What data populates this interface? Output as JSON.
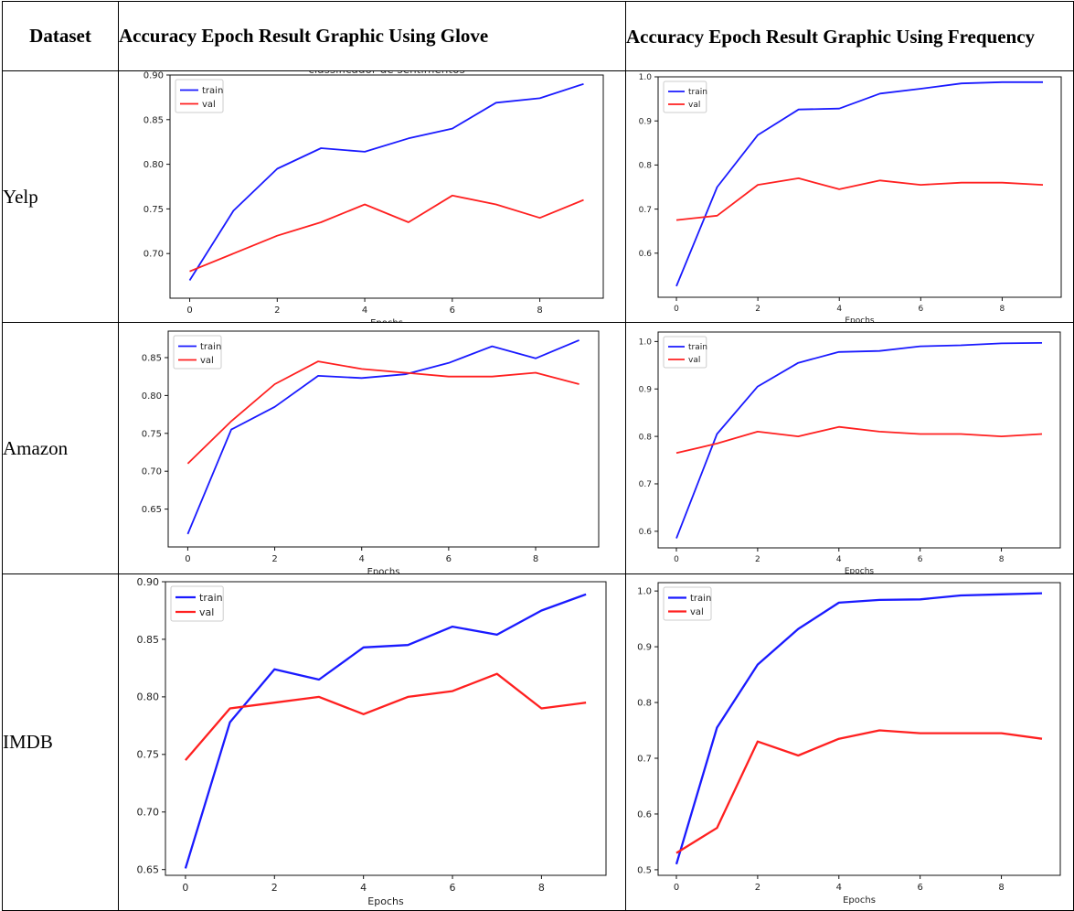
{
  "table": {
    "headers": {
      "dataset": "Dataset",
      "glove": "Accuracy Epoch Result Graphic Using Glove",
      "frequency": "Accuracy Epoch Result Graphic Using Frequency"
    },
    "rows": [
      {
        "dataset": "Yelp"
      },
      {
        "dataset": "Amazon"
      },
      {
        "dataset": "IMDB"
      }
    ]
  },
  "chart_data": [
    {
      "id": "yelp-glove",
      "type": "line",
      "title": "classificador de sentimentos",
      "xlabel": "Epochs",
      "ylabel": "",
      "x": [
        0,
        1,
        2,
        3,
        4,
        5,
        6,
        7,
        8,
        9
      ],
      "ylim": [
        0.65,
        0.9
      ],
      "yticks": [
        "0.70",
        "0.75",
        "0.80",
        "0.85",
        "0.90"
      ],
      "xticks": [
        "0",
        "2",
        "4",
        "6",
        "8"
      ],
      "legend": "top-left",
      "series": [
        {
          "name": "train",
          "color": "#1a1aff",
          "values": [
            0.67,
            0.748,
            0.795,
            0.818,
            0.814,
            0.829,
            0.84,
            0.869,
            0.874,
            0.89
          ]
        },
        {
          "name": "val",
          "color": "#ff2020",
          "values": [
            0.68,
            0.7,
            0.72,
            0.735,
            0.755,
            0.735,
            0.765,
            0.755,
            0.74,
            0.76
          ]
        }
      ]
    },
    {
      "id": "yelp-frequency",
      "type": "line",
      "xlabel": "Epochs",
      "ylabel": "",
      "x": [
        0,
        1,
        2,
        3,
        4,
        5,
        6,
        7,
        8,
        9
      ],
      "ylim": [
        0.5,
        1.0
      ],
      "yticks": [
        "0.6",
        "0.7",
        "0.8",
        "0.9",
        "1.0"
      ],
      "xticks": [
        "0",
        "2",
        "4",
        "6",
        "8"
      ],
      "legend": "top-left",
      "series": [
        {
          "name": "train",
          "color": "#1a1aff",
          "values": [
            0.525,
            0.75,
            0.868,
            0.926,
            0.928,
            0.962,
            0.973,
            0.985,
            0.988,
            0.988
          ]
        },
        {
          "name": "val",
          "color": "#ff2020",
          "values": [
            0.675,
            0.685,
            0.755,
            0.77,
            0.745,
            0.765,
            0.755,
            0.76,
            0.76,
            0.755
          ]
        }
      ]
    },
    {
      "id": "amazon-glove",
      "type": "line",
      "xlabel": "Epochs",
      "ylabel": "",
      "x": [
        0,
        1,
        2,
        3,
        4,
        5,
        6,
        7,
        8,
        9
      ],
      "ylim": [
        0.6,
        0.885
      ],
      "yticks": [
        "0.65",
        "0.70",
        "0.75",
        "0.80",
        "0.85"
      ],
      "xticks": [
        "0",
        "2",
        "4",
        "6",
        "8"
      ],
      "legend": "top-left",
      "series": [
        {
          "name": "train",
          "color": "#1a1aff",
          "values": [
            0.617,
            0.755,
            0.785,
            0.826,
            0.823,
            0.828,
            0.843,
            0.865,
            0.849,
            0.873
          ]
        },
        {
          "name": "val",
          "color": "#ff2020",
          "values": [
            0.71,
            0.766,
            0.815,
            0.845,
            0.835,
            0.83,
            0.825,
            0.825,
            0.83,
            0.815
          ]
        }
      ]
    },
    {
      "id": "amazon-frequency",
      "type": "line",
      "xlabel": "Epochs",
      "ylabel": "",
      "x": [
        0,
        1,
        2,
        3,
        4,
        5,
        6,
        7,
        8,
        9
      ],
      "ylim": [
        0.565,
        1.02
      ],
      "yticks": [
        "0.6",
        "0.7",
        "0.8",
        "0.9",
        "1.0"
      ],
      "xticks": [
        "0",
        "2",
        "4",
        "6",
        "8"
      ],
      "legend": "top-left",
      "series": [
        {
          "name": "train",
          "color": "#1a1aff",
          "values": [
            0.585,
            0.805,
            0.905,
            0.955,
            0.978,
            0.98,
            0.99,
            0.992,
            0.996,
            0.997
          ]
        },
        {
          "name": "val",
          "color": "#ff2020",
          "values": [
            0.765,
            0.785,
            0.81,
            0.8,
            0.82,
            0.81,
            0.805,
            0.805,
            0.8,
            0.805
          ]
        }
      ]
    },
    {
      "id": "imdb-glove",
      "type": "line",
      "xlabel": "Epochs",
      "ylabel": "",
      "x": [
        0,
        1,
        2,
        3,
        4,
        5,
        6,
        7,
        8,
        9
      ],
      "ylim": [
        0.645,
        0.9
      ],
      "yticks": [
        "0.65",
        "0.70",
        "0.75",
        "0.80",
        "0.85",
        "0.90"
      ],
      "xticks": [
        "0",
        "2",
        "4",
        "6",
        "8"
      ],
      "legend": "top-left",
      "series": [
        {
          "name": "train",
          "color": "#1a1aff",
          "values": [
            0.651,
            0.778,
            0.824,
            0.815,
            0.843,
            0.845,
            0.861,
            0.854,
            0.875,
            0.889
          ]
        },
        {
          "name": "val",
          "color": "#ff2020",
          "values": [
            0.745,
            0.79,
            0.795,
            0.8,
            0.785,
            0.8,
            0.805,
            0.82,
            0.79,
            0.795
          ]
        }
      ]
    },
    {
      "id": "imdb-frequency",
      "type": "line",
      "xlabel": "Epochs",
      "ylabel": "",
      "x": [
        0,
        1,
        2,
        3,
        4,
        5,
        6,
        7,
        8,
        9
      ],
      "ylim": [
        0.49,
        1.015
      ],
      "yticks": [
        "0.5",
        "0.6",
        "0.7",
        "0.8",
        "0.9",
        "1.0"
      ],
      "xticks": [
        "0",
        "2",
        "4",
        "6",
        "8"
      ],
      "legend": "top-left",
      "series": [
        {
          "name": "train",
          "color": "#1a1aff",
          "values": [
            0.51,
            0.755,
            0.868,
            0.932,
            0.979,
            0.984,
            0.985,
            0.992,
            0.994,
            0.996
          ]
        },
        {
          "name": "val",
          "color": "#ff2020",
          "values": [
            0.53,
            0.575,
            0.73,
            0.705,
            0.735,
            0.75,
            0.745,
            0.745,
            0.745,
            0.735
          ]
        }
      ]
    }
  ]
}
